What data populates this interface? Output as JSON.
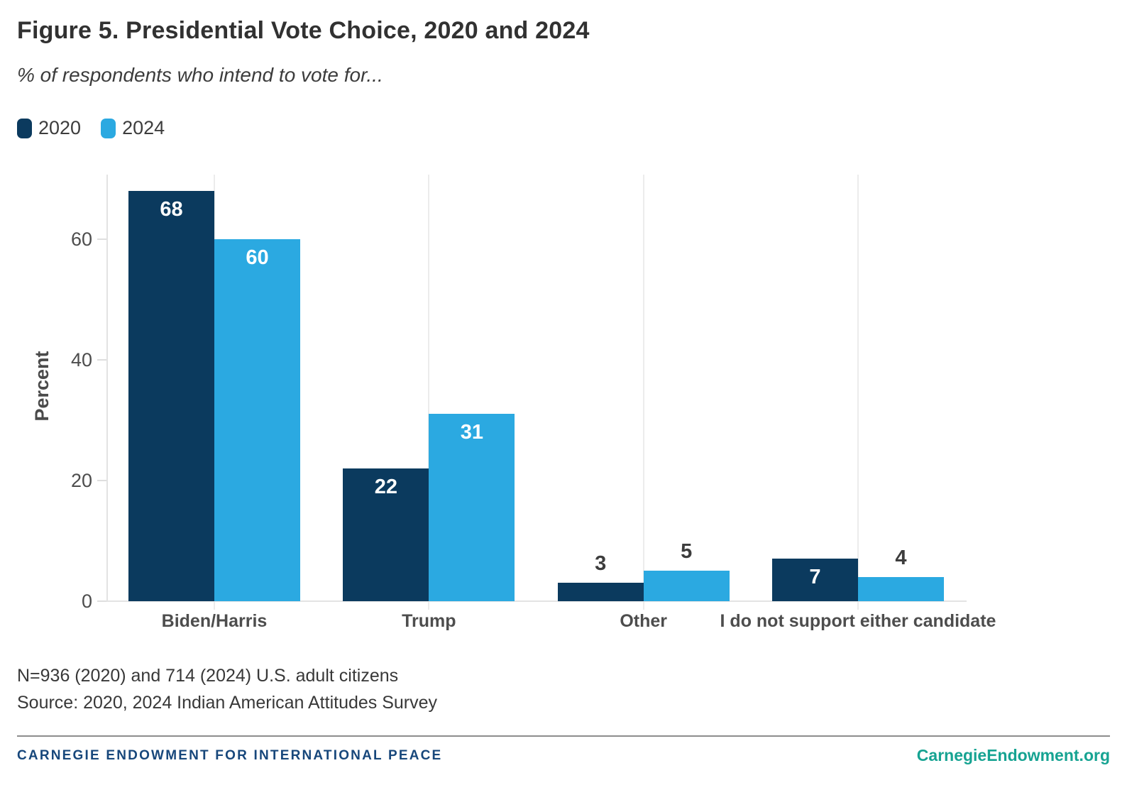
{
  "header": {
    "title": "Figure 5. Presidential Vote Choice, 2020 and 2024",
    "subtitle": "% of respondents who intend to vote for..."
  },
  "legend": {
    "items": [
      {
        "label": "2020",
        "color": "#0B3A5E"
      },
      {
        "label": "2024",
        "color": "#2BA9E1"
      }
    ]
  },
  "chart_data": {
    "type": "bar",
    "title": "Figure 5. Presidential Vote Choice, 2020 and 2024",
    "subtitle": "% of respondents who intend to vote for...",
    "categories": [
      "Biden/Harris",
      "Trump",
      "Other",
      "I do not support either candidate"
    ],
    "series": [
      {
        "name": "2020",
        "color": "#0B3A5E",
        "values": [
          68,
          22,
          3,
          7
        ]
      },
      {
        "name": "2024",
        "color": "#2BA9E1",
        "values": [
          60,
          31,
          5,
          4
        ]
      }
    ],
    "ylabel": "Percent",
    "xlabel": "",
    "yticks": [
      0,
      20,
      40,
      60
    ],
    "ylim": [
      0,
      70
    ],
    "grid": "vertical-lines-at-category-centers",
    "legend_position": "top-left",
    "value_labels": "on",
    "value_label_color_inside": "#ffffff",
    "value_label_color_outside": "#3d3d3d"
  },
  "notes": {
    "line1": "N=936 (2020) and 714 (2024) U.S. adult citizens",
    "line2": "Source: 2020, 2024 Indian American Attitudes Survey"
  },
  "footer": {
    "org_name": "CARNEGIE ENDOWMENT FOR INTERNATIONAL PEACE",
    "org_color": "#17477B",
    "website": "CarnegieEndowment.org",
    "website_color": "#16A392"
  }
}
